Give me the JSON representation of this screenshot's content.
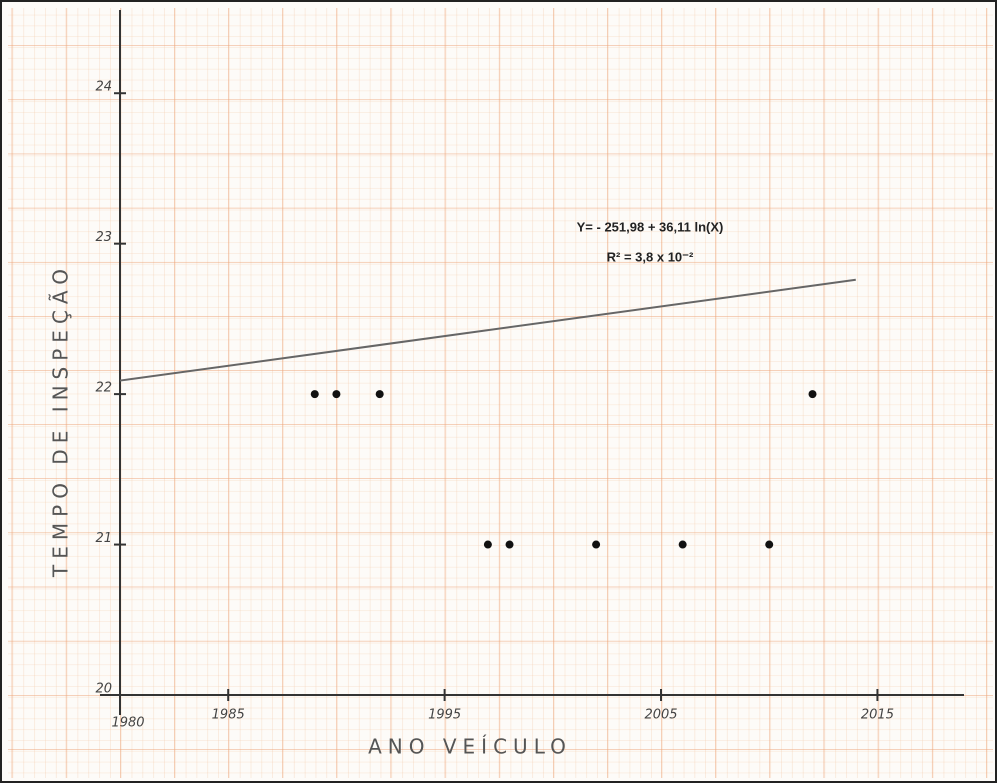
{
  "chart_data": {
    "type": "scatter",
    "x": [
      1989,
      1990,
      1992,
      2012,
      1997,
      1998,
      2002,
      2006,
      2010
    ],
    "values": [
      22,
      22,
      22,
      22,
      21,
      21,
      21,
      21,
      21
    ],
    "color": "#111111",
    "trendline": {
      "x": [
        1980,
        2014
      ],
      "values": [
        22.09,
        22.76
      ],
      "color": "#666666"
    },
    "annotations": [
      "Y= - 251,98 + 36,11 ln(X)",
      "R² = 3,8 x 10⁻²"
    ],
    "xlabel": "ANO   VEÍCULO",
    "ylabel": "TEMPO DE INSPEÇÃO",
    "xlim": [
      1980,
      2019
    ],
    "xticks": [
      1980,
      1985,
      1995,
      2005,
      2015
    ],
    "ylim": [
      20,
      24.5
    ],
    "yticks": [
      20,
      21,
      22,
      23,
      24
    ]
  }
}
